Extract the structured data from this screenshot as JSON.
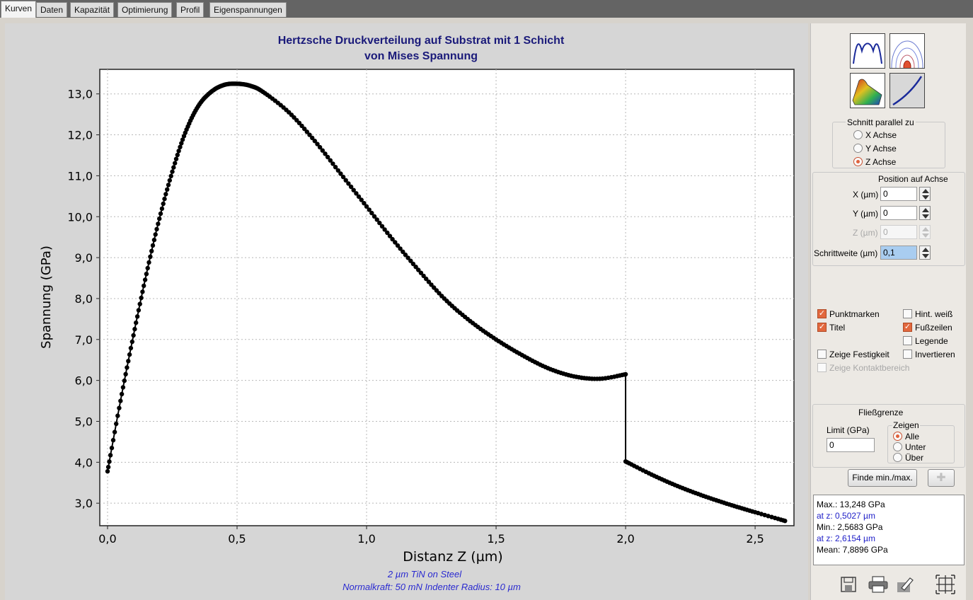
{
  "tabs": [
    "Kurven",
    "Daten",
    "Kapazität",
    "Optimierung",
    "Profil",
    "Eigenspannungen"
  ],
  "chart_data": {
    "type": "line",
    "title": "Hertzsche Druckverteilung auf Substrat mit 1 Schicht",
    "subtitle": "von Mises Spannung",
    "xlabel": "Distanz Z (µm)",
    "ylabel": "Spannung (GPa)",
    "xlim": [
      -0.03,
      2.65
    ],
    "ylim": [
      2.45,
      13.6
    ],
    "x_ticks": [
      "0,0",
      "0,5",
      "1,0",
      "1,5",
      "2,0",
      "2,5"
    ],
    "x_tick_values": [
      0,
      0.5,
      1.0,
      1.5,
      2.0,
      2.5
    ],
    "y_ticks": [
      "3,0",
      "4,0",
      "5,0",
      "6,0",
      "7,0",
      "8,0",
      "9,0",
      "10,0",
      "11,0",
      "12,0",
      "13,0"
    ],
    "y_tick_values": [
      3,
      4,
      5,
      6,
      7,
      8,
      9,
      10,
      11,
      12,
      13
    ],
    "grid": true,
    "legend": "none",
    "point_markers": true,
    "series": [
      {
        "x": [
          0.0,
          0.05,
          0.1,
          0.15,
          0.2,
          0.25,
          0.3,
          0.35,
          0.4,
          0.45,
          0.5,
          0.55,
          0.6,
          0.7,
          0.8,
          0.9,
          1.0,
          1.1,
          1.2,
          1.3,
          1.4,
          1.5,
          1.6,
          1.7,
          1.8,
          1.9,
          2.0
        ],
        "y": [
          3.78,
          5.5,
          7.1,
          8.6,
          9.95,
          11.1,
          12.05,
          12.7,
          13.05,
          13.22,
          13.248,
          13.2,
          13.05,
          12.55,
          11.85,
          11.05,
          10.25,
          9.45,
          8.7,
          8.0,
          7.45,
          7.0,
          6.62,
          6.3,
          6.1,
          6.04,
          6.15
        ]
      },
      {
        "x": [
          2.0,
          2.1,
          2.2,
          2.3,
          2.4,
          2.5,
          2.6154
        ],
        "y": [
          4.02,
          3.7,
          3.42,
          3.18,
          2.97,
          2.78,
          2.5683
        ]
      }
    ]
  },
  "footer": {
    "line1": "2 µm TiN on Steel",
    "line2": "Normalkraft: 50 mN   Indenter Radius: 10 µm"
  },
  "side": {
    "view_icons": [
      "profile-curve-icon",
      "contour-map-icon",
      "surface-3d-icon",
      "line-curve-icon"
    ],
    "schnitt_title": "Schnitt parallel zu",
    "axes": [
      "X Achse",
      "Y Achse",
      "Z Achse"
    ],
    "axis_selected": "Z Achse",
    "position_title": "Position auf Achse",
    "x_label": "X (µm)",
    "x_value": "0",
    "y_label": "Y (µm)",
    "y_value": "0",
    "z_label": "Z (µm)",
    "z_value": "0",
    "step_label": "Schrittweite (µm)",
    "step_value": "0,1",
    "punktmarken": "Punktmarken",
    "hint_weiss": "Hint. weiß",
    "titel": "Titel",
    "fusszeilen": "Fußzeilen",
    "legende": "Legende",
    "zeige_festigkeit": "Zeige Festigkeit",
    "invertieren": "Invertieren",
    "zeige_kontakt": "Zeige Kontaktbereich",
    "fliess_title": "Fließgrenze",
    "limit_label": "Limit (GPa)",
    "limit_value": "0",
    "zeigen_title": "Zeigen",
    "zeigen_options": [
      "Alle",
      "Unter",
      "Über"
    ],
    "find_button": "Finde min./max.",
    "results": {
      "max": "Max.: 13,248 GPa",
      "max_at": "at z: 0,5027 µm",
      "min": "Min.: 2,5683 GPa",
      "min_at": "at z: 2,6154 µm",
      "mean": "Mean: 7,8896 GPa"
    },
    "toolbar_icons": [
      "save-icon",
      "print-icon",
      "edit-icon",
      "zoom-fit-icon"
    ]
  }
}
